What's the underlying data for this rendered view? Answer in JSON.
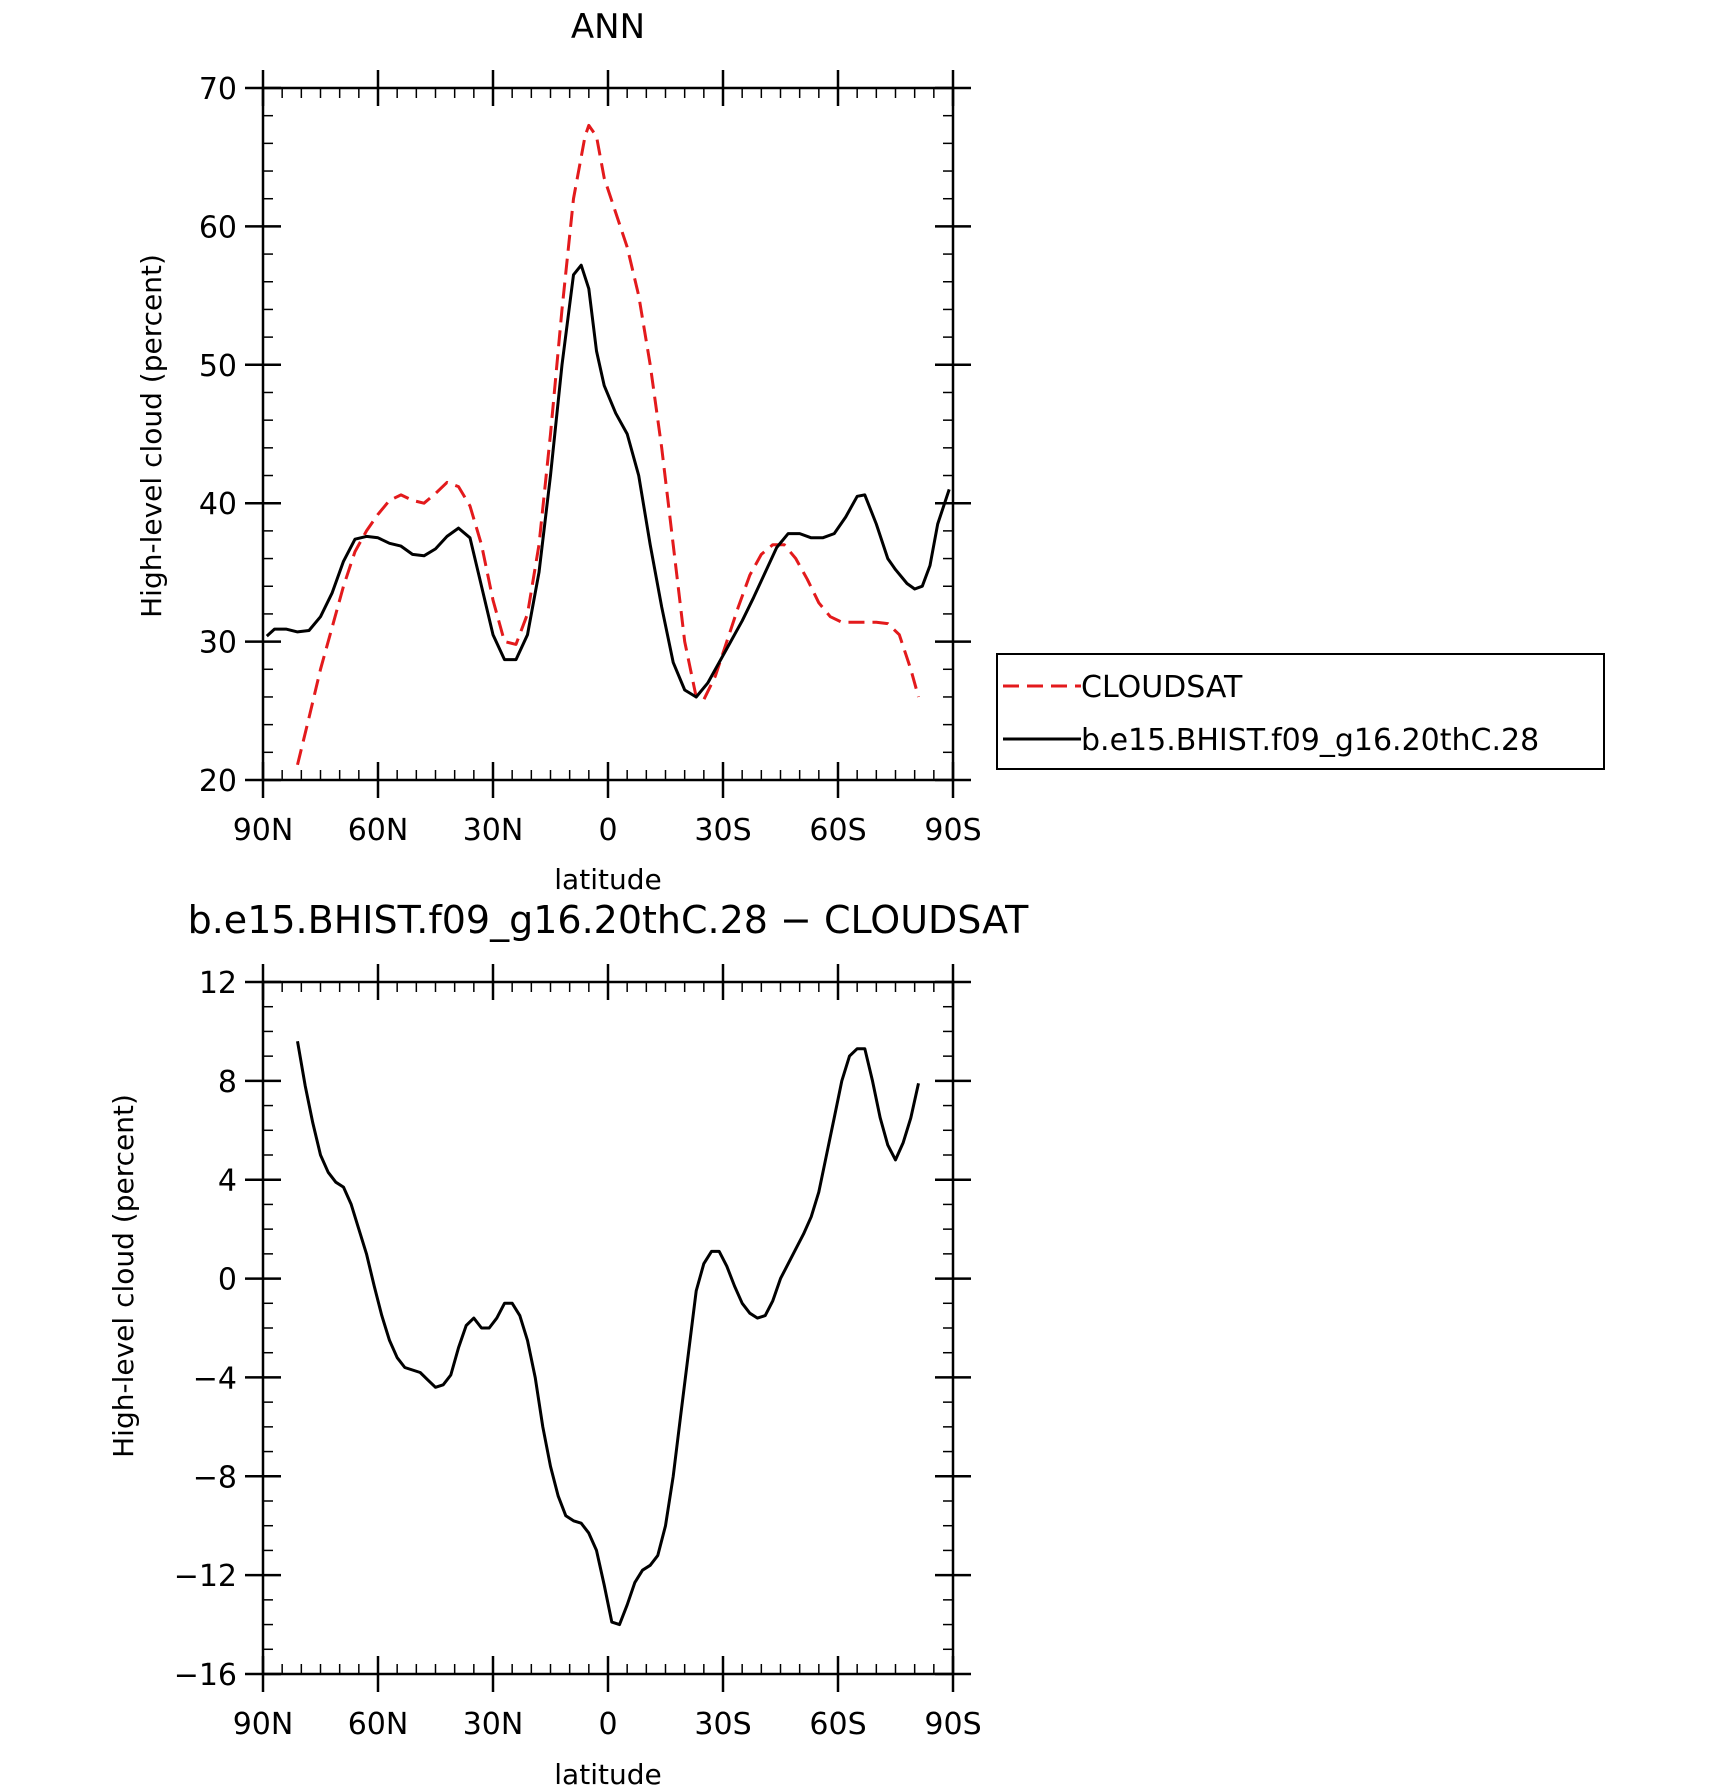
{
  "chart_data": [
    {
      "type": "line",
      "title": "ANN",
      "xlabel": "latitude",
      "ylabel": "High-level cloud (percent)",
      "xlim": [
        90,
        -90
      ],
      "ylim": [
        20,
        70
      ],
      "x_ticks": [
        90,
        60,
        30,
        0,
        -30,
        -60,
        -90
      ],
      "x_tick_labels": [
        "90N",
        "60N",
        "30N",
        "0",
        "30S",
        "60S",
        "90S"
      ],
      "y_ticks": [
        20,
        30,
        40,
        50,
        60,
        70
      ],
      "y_tick_labels": [
        "20",
        "30",
        "40",
        "50",
        "60",
        "70"
      ],
      "legend_position": "right",
      "series": [
        {
          "name": "CLOUDSAT",
          "color": "#e31a1c",
          "dash": "dashed",
          "points": [
            [
              81,
              21.1
            ],
            [
              78,
              24.5
            ],
            [
              75,
              28
            ],
            [
              72,
              31
            ],
            [
              69,
              34
            ],
            [
              66,
              36.5
            ],
            [
              63,
              38
            ],
            [
              60,
              39.2
            ],
            [
              57,
              40.2
            ],
            [
              54,
              40.6
            ],
            [
              51,
              40.2
            ],
            [
              48,
              40
            ],
            [
              45,
              40.7
            ],
            [
              42,
              41.5
            ],
            [
              39,
              41.2
            ],
            [
              36,
              39.8
            ],
            [
              33,
              37
            ],
            [
              30,
              33
            ],
            [
              27,
              30
            ],
            [
              24,
              29.8
            ],
            [
              21,
              32
            ],
            [
              18,
              37
            ],
            [
              15,
              45
            ],
            [
              12,
              54
            ],
            [
              9,
              62
            ],
            [
              6,
              66.5
            ],
            [
              5,
              67.3
            ],
            [
              3,
              66.5
            ],
            [
              1,
              63.5
            ],
            [
              -2,
              61
            ],
            [
              -5,
              58.5
            ],
            [
              -8,
              55
            ],
            [
              -11,
              50
            ],
            [
              -14,
              44
            ],
            [
              -17,
              37
            ],
            [
              -20,
              30
            ],
            [
              -23,
              26
            ],
            [
              -25,
              25.8
            ],
            [
              -28,
              27.5
            ],
            [
              -31,
              30
            ],
            [
              -34,
              32.5
            ],
            [
              -37,
              34.8
            ],
            [
              -40,
              36.3
            ],
            [
              -43,
              37
            ],
            [
              -46,
              37
            ],
            [
              -49,
              36
            ],
            [
              -52,
              34.5
            ],
            [
              -55,
              32.8
            ],
            [
              -58,
              31.8
            ],
            [
              -61,
              31.4
            ],
            [
              -64,
              31.4
            ],
            [
              -67,
              31.4
            ],
            [
              -70,
              31.4
            ],
            [
              -73,
              31.3
            ],
            [
              -76,
              30.5
            ],
            [
              -79,
              28
            ],
            [
              -81,
              26
            ]
          ]
        },
        {
          "name": "b.e15.BHIST.f09_g16.20thC.28",
          "color": "#000000",
          "dash": "solid",
          "points": [
            [
              89,
              30.4
            ],
            [
              87,
              30.9
            ],
            [
              84,
              30.9
            ],
            [
              81,
              30.7
            ],
            [
              78,
              30.8
            ],
            [
              75,
              31.8
            ],
            [
              72,
              33.5
            ],
            [
              69,
              35.8
            ],
            [
              66,
              37.4
            ],
            [
              63,
              37.6
            ],
            [
              60,
              37.5
            ],
            [
              57,
              37.1
            ],
            [
              54,
              36.9
            ],
            [
              51,
              36.3
            ],
            [
              48,
              36.2
            ],
            [
              45,
              36.7
            ],
            [
              42,
              37.6
            ],
            [
              39,
              38.2
            ],
            [
              36,
              37.5
            ],
            [
              33,
              34
            ],
            [
              30,
              30.5
            ],
            [
              27,
              28.7
            ],
            [
              24,
              28.7
            ],
            [
              21,
              30.5
            ],
            [
              18,
              35
            ],
            [
              15,
              42
            ],
            [
              12,
              50
            ],
            [
              9,
              56.5
            ],
            [
              7,
              57.2
            ],
            [
              5,
              55.5
            ],
            [
              3,
              51
            ],
            [
              1,
              48.5
            ],
            [
              -2,
              46.5
            ],
            [
              -5,
              45
            ],
            [
              -8,
              42
            ],
            [
              -11,
              37
            ],
            [
              -14,
              32.5
            ],
            [
              -17,
              28.5
            ],
            [
              -20,
              26.5
            ],
            [
              -23,
              26
            ],
            [
              -26,
              27
            ],
            [
              -29,
              28.5
            ],
            [
              -32,
              30
            ],
            [
              -35,
              31.5
            ],
            [
              -38,
              33.2
            ],
            [
              -41,
              35
            ],
            [
              -44,
              36.8
            ],
            [
              -47,
              37.8
            ],
            [
              -50,
              37.8
            ],
            [
              -53,
              37.5
            ],
            [
              -56,
              37.5
            ],
            [
              -59,
              37.8
            ],
            [
              -62,
              39
            ],
            [
              -65,
              40.5
            ],
            [
              -67,
              40.6
            ],
            [
              -70,
              38.5
            ],
            [
              -73,
              36
            ],
            [
              -75,
              35.2
            ],
            [
              -78,
              34.2
            ],
            [
              -80,
              33.8
            ],
            [
              -82,
              34
            ],
            [
              -84,
              35.5
            ],
            [
              -86,
              38.5
            ],
            [
              -89,
              41
            ]
          ]
        }
      ]
    },
    {
      "type": "line",
      "title": "b.e15.BHIST.f09_g16.20thC.28 − CLOUDSAT",
      "xlabel": "latitude",
      "ylabel": "High-level cloud (percent)",
      "xlim": [
        90,
        -90
      ],
      "ylim": [
        -16,
        12
      ],
      "x_ticks": [
        90,
        60,
        30,
        0,
        -30,
        -60,
        -90
      ],
      "x_tick_labels": [
        "90N",
        "60N",
        "30N",
        "0",
        "30S",
        "60S",
        "90S"
      ],
      "y_ticks": [
        -16,
        -12,
        -8,
        -4,
        0,
        4,
        8,
        12
      ],
      "y_tick_labels": [
        "−16",
        "−12",
        "−8",
        "−4",
        "0",
        "4",
        "8",
        "12"
      ],
      "series": [
        {
          "name": "",
          "color": "#000000",
          "dash": "solid",
          "points": [
            [
              81,
              9.6
            ],
            [
              79,
              7.8
            ],
            [
              77,
              6.3
            ],
            [
              75,
              5
            ],
            [
              73,
              4.3
            ],
            [
              71,
              3.9
            ],
            [
              69,
              3.7
            ],
            [
              67,
              3
            ],
            [
              65,
              2
            ],
            [
              63,
              1
            ],
            [
              61,
              -0.3
            ],
            [
              59,
              -1.5
            ],
            [
              57,
              -2.5
            ],
            [
              55,
              -3.2
            ],
            [
              53,
              -3.6
            ],
            [
              51,
              -3.7
            ],
            [
              49,
              -3.8
            ],
            [
              47,
              -4.1
            ],
            [
              45,
              -4.4
            ],
            [
              43,
              -4.3
            ],
            [
              41,
              -3.9
            ],
            [
              39,
              -2.8
            ],
            [
              37,
              -1.9
            ],
            [
              35,
              -1.6
            ],
            [
              33,
              -2
            ],
            [
              31,
              -2
            ],
            [
              29,
              -1.6
            ],
            [
              27,
              -1
            ],
            [
              25,
              -1
            ],
            [
              23,
              -1.5
            ],
            [
              21,
              -2.5
            ],
            [
              19,
              -4
            ],
            [
              17,
              -6
            ],
            [
              15,
              -7.6
            ],
            [
              13,
              -8.8
            ],
            [
              11,
              -9.6
            ],
            [
              9,
              -9.8
            ],
            [
              7,
              -9.9
            ],
            [
              5,
              -10.3
            ],
            [
              3,
              -11
            ],
            [
              1,
              -12.4
            ],
            [
              -1,
              -13.9
            ],
            [
              -3,
              -14
            ],
            [
              -5,
              -13.2
            ],
            [
              -7,
              -12.3
            ],
            [
              -9,
              -11.8
            ],
            [
              -11,
              -11.6
            ],
            [
              -13,
              -11.2
            ],
            [
              -15,
              -10
            ],
            [
              -17,
              -8
            ],
            [
              -19,
              -5.5
            ],
            [
              -21,
              -3
            ],
            [
              -23,
              -0.5
            ],
            [
              -25,
              0.6
            ],
            [
              -27,
              1.1
            ],
            [
              -29,
              1.1
            ],
            [
              -31,
              0.5
            ],
            [
              -33,
              -0.3
            ],
            [
              -35,
              -1
            ],
            [
              -37,
              -1.4
            ],
            [
              -39,
              -1.6
            ],
            [
              -41,
              -1.5
            ],
            [
              -43,
              -0.9
            ],
            [
              -45,
              0
            ],
            [
              -47,
              0.6
            ],
            [
              -49,
              1.2
            ],
            [
              -51,
              1.8
            ],
            [
              -53,
              2.5
            ],
            [
              -55,
              3.5
            ],
            [
              -57,
              5
            ],
            [
              -59,
              6.5
            ],
            [
              -61,
              8
            ],
            [
              -63,
              9
            ],
            [
              -65,
              9.3
            ],
            [
              -67,
              9.3
            ],
            [
              -69,
              8
            ],
            [
              -71,
              6.5
            ],
            [
              -73,
              5.4
            ],
            [
              -75,
              4.8
            ],
            [
              -77,
              5.5
            ],
            [
              -79,
              6.5
            ],
            [
              -81,
              7.9
            ]
          ]
        }
      ]
    }
  ]
}
